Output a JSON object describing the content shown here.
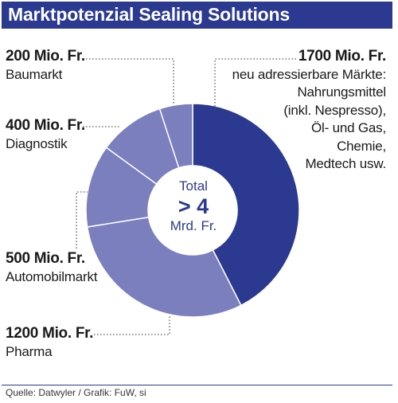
{
  "title": "Marktpotenzial Sealing Solutions",
  "center": {
    "line1": "Total",
    "line2": "> 4",
    "line3": "Mrd. Fr."
  },
  "labels": {
    "adressierbar": {
      "amount": "1700 Mio. Fr.",
      "lines": [
        "neu adressierbare Märkte:",
        "Nahrungsmittel",
        "(inkl. Nespresso),",
        "Öl- und Gas,",
        "Chemie,",
        "Medtech usw."
      ]
    },
    "baumarkt": {
      "amount": "200 Mio. Fr.",
      "category": "Baumarkt"
    },
    "diagnostik": {
      "amount": "400 Mio. Fr.",
      "category": "Diagnostik"
    },
    "automobil": {
      "amount": "500 Mio. Fr.",
      "category": "Automobilmarkt"
    },
    "pharma": {
      "amount": "1200 Mio. Fr.",
      "category": "Pharma"
    }
  },
  "source": "Quelle: Datwyler / Grafik: FuW, si",
  "colors": {
    "title_bg": "#2b3990",
    "slice_main": "#2b3990",
    "slice_other": "#7b7fbe",
    "separator": "#ffffff",
    "leader": "#555555"
  },
  "chart_data": {
    "type": "pie",
    "donut": true,
    "unit": "Mio. Fr.",
    "categories": [
      "neu adressierbare Märkte",
      "Pharma",
      "Automobilmarkt",
      "Diagnostik",
      "Baumarkt"
    ],
    "values": [
      1700,
      1200,
      500,
      400,
      200
    ]
  }
}
